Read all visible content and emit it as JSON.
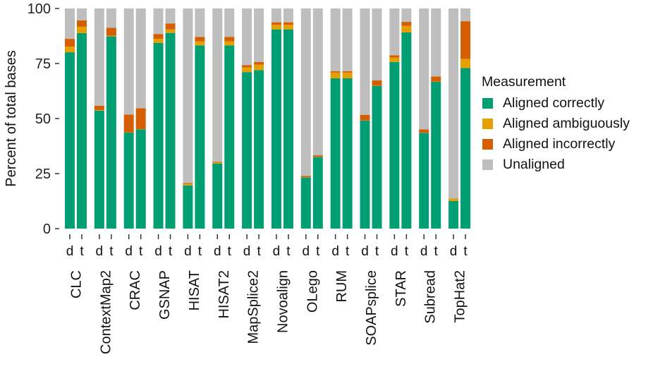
{
  "chart_data": {
    "type": "bar",
    "stacked": true,
    "title": "",
    "xlabel": "",
    "ylabel": "Percent of total bases",
    "ylim": [
      0,
      100
    ],
    "yticks": [
      0,
      25,
      50,
      75,
      100
    ],
    "grid": false,
    "legend": {
      "title": "Measurement",
      "placement": "right",
      "entries": [
        {
          "name": "Aligned correctly",
          "color": "#009E73"
        },
        {
          "name": "Aligned ambiguously",
          "color": "#E69F00"
        },
        {
          "name": "Aligned incorrectly",
          "color": "#D55E00"
        },
        {
          "name": "Unaligned",
          "color": "#BEBEBE"
        }
      ]
    },
    "sub_categories": [
      "d",
      "t"
    ],
    "categories": [
      "CLC",
      "ContextMap2",
      "CRAC",
      "GSNAP",
      "HISAT",
      "HISAT2",
      "MapSplice2",
      "Novoalign",
      "OLego",
      "RUM",
      "SOAPsplice",
      "STAR",
      "Subread",
      "TopHat2"
    ],
    "series": [
      {
        "name": "Aligned correctly",
        "values": [
          [
            80.1,
            88.8
          ],
          [
            53.6,
            87.3
          ],
          [
            43.6,
            45.1
          ],
          [
            84.3,
            88.9
          ],
          [
            19.6,
            83.2
          ],
          [
            29.5,
            83.2
          ],
          [
            71.1,
            72.0
          ],
          [
            90.5,
            90.5
          ],
          [
            23.2,
            32.5
          ],
          [
            68.3,
            68.3
          ],
          [
            49.1,
            64.8
          ],
          [
            75.7,
            89.1
          ],
          [
            43.5,
            66.7
          ],
          [
            12.5,
            72.9
          ]
        ]
      },
      {
        "name": "Aligned ambiguously",
        "values": [
          [
            2.6,
            2.9
          ],
          [
            0.2,
            0.3
          ],
          [
            0.1,
            0.1
          ],
          [
            1.9,
            1.6
          ],
          [
            0.7,
            1.9
          ],
          [
            0.5,
            1.9
          ],
          [
            2.1,
            2.5
          ],
          [
            2.1,
            2.1
          ],
          [
            0.1,
            0.1
          ],
          [
            2.6,
            2.6
          ],
          [
            0.1,
            0.1
          ],
          [
            2.0,
            3.0
          ],
          [
            0.1,
            0.1
          ],
          [
            1.1,
            4.2
          ]
        ]
      },
      {
        "name": "Aligned incorrectly",
        "values": [
          [
            3.5,
            2.9
          ],
          [
            2.0,
            3.6
          ],
          [
            8.1,
            9.5
          ],
          [
            2.2,
            2.7
          ],
          [
            0.4,
            2.0
          ],
          [
            0.3,
            2.0
          ],
          [
            1.1,
            1.2
          ],
          [
            1.1,
            1.1
          ],
          [
            0.6,
            0.7
          ],
          [
            0.6,
            0.6
          ],
          [
            2.5,
            2.4
          ],
          [
            1.0,
            1.8
          ],
          [
            1.5,
            2.3
          ],
          [
            0.1,
            17.1
          ]
        ]
      },
      {
        "name": "Unaligned",
        "values": [
          [
            13.8,
            5.4
          ],
          [
            44.2,
            8.8
          ],
          [
            48.2,
            45.3
          ],
          [
            11.6,
            6.8
          ],
          [
            79.3,
            12.9
          ],
          [
            69.7,
            12.9
          ],
          [
            25.7,
            24.3
          ],
          [
            6.3,
            6.3
          ],
          [
            76.1,
            66.7
          ],
          [
            28.5,
            28.5
          ],
          [
            48.3,
            32.7
          ],
          [
            21.3,
            6.1
          ],
          [
            54.9,
            30.9
          ],
          [
            86.3,
            5.8
          ]
        ]
      }
    ]
  }
}
